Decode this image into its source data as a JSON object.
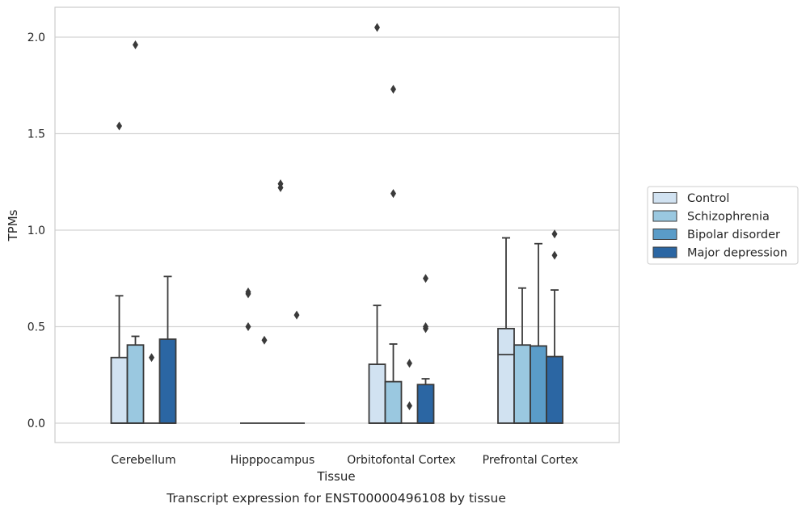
{
  "caption": "Transcript expression for ENST00000496108 by tissue",
  "chart_data": {
    "type": "box",
    "title": "",
    "xlabel": "Tissue",
    "ylabel": "TPMs",
    "ylim": [
      -0.1,
      2.16
    ],
    "yticks": [
      "0.0",
      "0.5",
      "1.0",
      "1.5",
      "2.0"
    ],
    "ytick_values": [
      0.0,
      0.5,
      1.0,
      1.5,
      2.0
    ],
    "grid": "horizontal",
    "legend_position": "right",
    "categories": [
      "Cerebellum",
      "Hipppocampus",
      "Orbitofontal Cortex",
      "Prefrontal Cortex"
    ],
    "series": [
      {
        "name": "Control",
        "color": "#d1e2f1",
        "boxes": [
          {
            "min": 0.0,
            "q1": 0.0,
            "median": 0.0,
            "q3": 0.34,
            "max": 0.66,
            "outliers": [
              1.54
            ]
          },
          {
            "min": 0.0,
            "q1": 0.0,
            "median": 0.0,
            "q3": 0.0,
            "max": 0.0,
            "outliers": [
              0.5,
              0.67,
              0.68
            ]
          },
          {
            "min": 0.0,
            "q1": 0.0,
            "median": 0.0,
            "q3": 0.305,
            "max": 0.61,
            "outliers": [
              2.05
            ]
          },
          {
            "min": 0.0,
            "q1": 0.0,
            "median": 0.355,
            "q3": 0.49,
            "max": 0.96,
            "outliers": []
          }
        ]
      },
      {
        "name": "Schizophrenia",
        "color": "#9ac8e0",
        "boxes": [
          {
            "min": 0.0,
            "q1": 0.0,
            "median": 0.0,
            "q3": 0.405,
            "max": 0.45,
            "outliers": [
              1.96
            ]
          },
          {
            "min": 0.0,
            "q1": 0.0,
            "median": 0.0,
            "q3": 0.0,
            "max": 0.0,
            "outliers": [
              0.43
            ]
          },
          {
            "min": 0.0,
            "q1": 0.0,
            "median": 0.0,
            "q3": 0.215,
            "max": 0.41,
            "outliers": [
              1.19,
              1.73
            ]
          },
          {
            "min": 0.0,
            "q1": 0.0,
            "median": 0.0,
            "q3": 0.405,
            "max": 0.7,
            "outliers": []
          }
        ]
      },
      {
        "name": "Bipolar disorder",
        "color": "#5a9cc8",
        "boxes": [
          {
            "min": 0.0,
            "q1": 0.0,
            "median": 0.0,
            "q3": 0.0,
            "max": 0.0,
            "outliers": [
              0.34
            ]
          },
          {
            "min": 0.0,
            "q1": 0.0,
            "median": 0.0,
            "q3": 0.0,
            "max": 0.0,
            "outliers": [
              1.22,
              1.24
            ]
          },
          {
            "min": 0.0,
            "q1": 0.0,
            "median": 0.0,
            "q3": 0.0,
            "max": 0.0,
            "outliers": [
              0.09,
              0.31
            ]
          },
          {
            "min": 0.0,
            "q1": 0.0,
            "median": 0.0,
            "q3": 0.4,
            "max": 0.93,
            "outliers": []
          }
        ]
      },
      {
        "name": "Major depression",
        "color": "#2b66a3",
        "boxes": [
          {
            "min": 0.0,
            "q1": 0.0,
            "median": 0.0,
            "q3": 0.435,
            "max": 0.76,
            "outliers": []
          },
          {
            "min": 0.0,
            "q1": 0.0,
            "median": 0.0,
            "q3": 0.0,
            "max": 0.0,
            "outliers": [
              0.56
            ]
          },
          {
            "min": 0.0,
            "q1": 0.0,
            "median": 0.0,
            "q3": 0.2,
            "max": 0.23,
            "outliers": [
              0.49,
              0.5,
              0.75
            ]
          },
          {
            "min": 0.0,
            "q1": 0.0,
            "median": 0.0,
            "q3": 0.345,
            "max": 0.69,
            "outliers": [
              0.87,
              0.98
            ]
          }
        ]
      }
    ]
  }
}
